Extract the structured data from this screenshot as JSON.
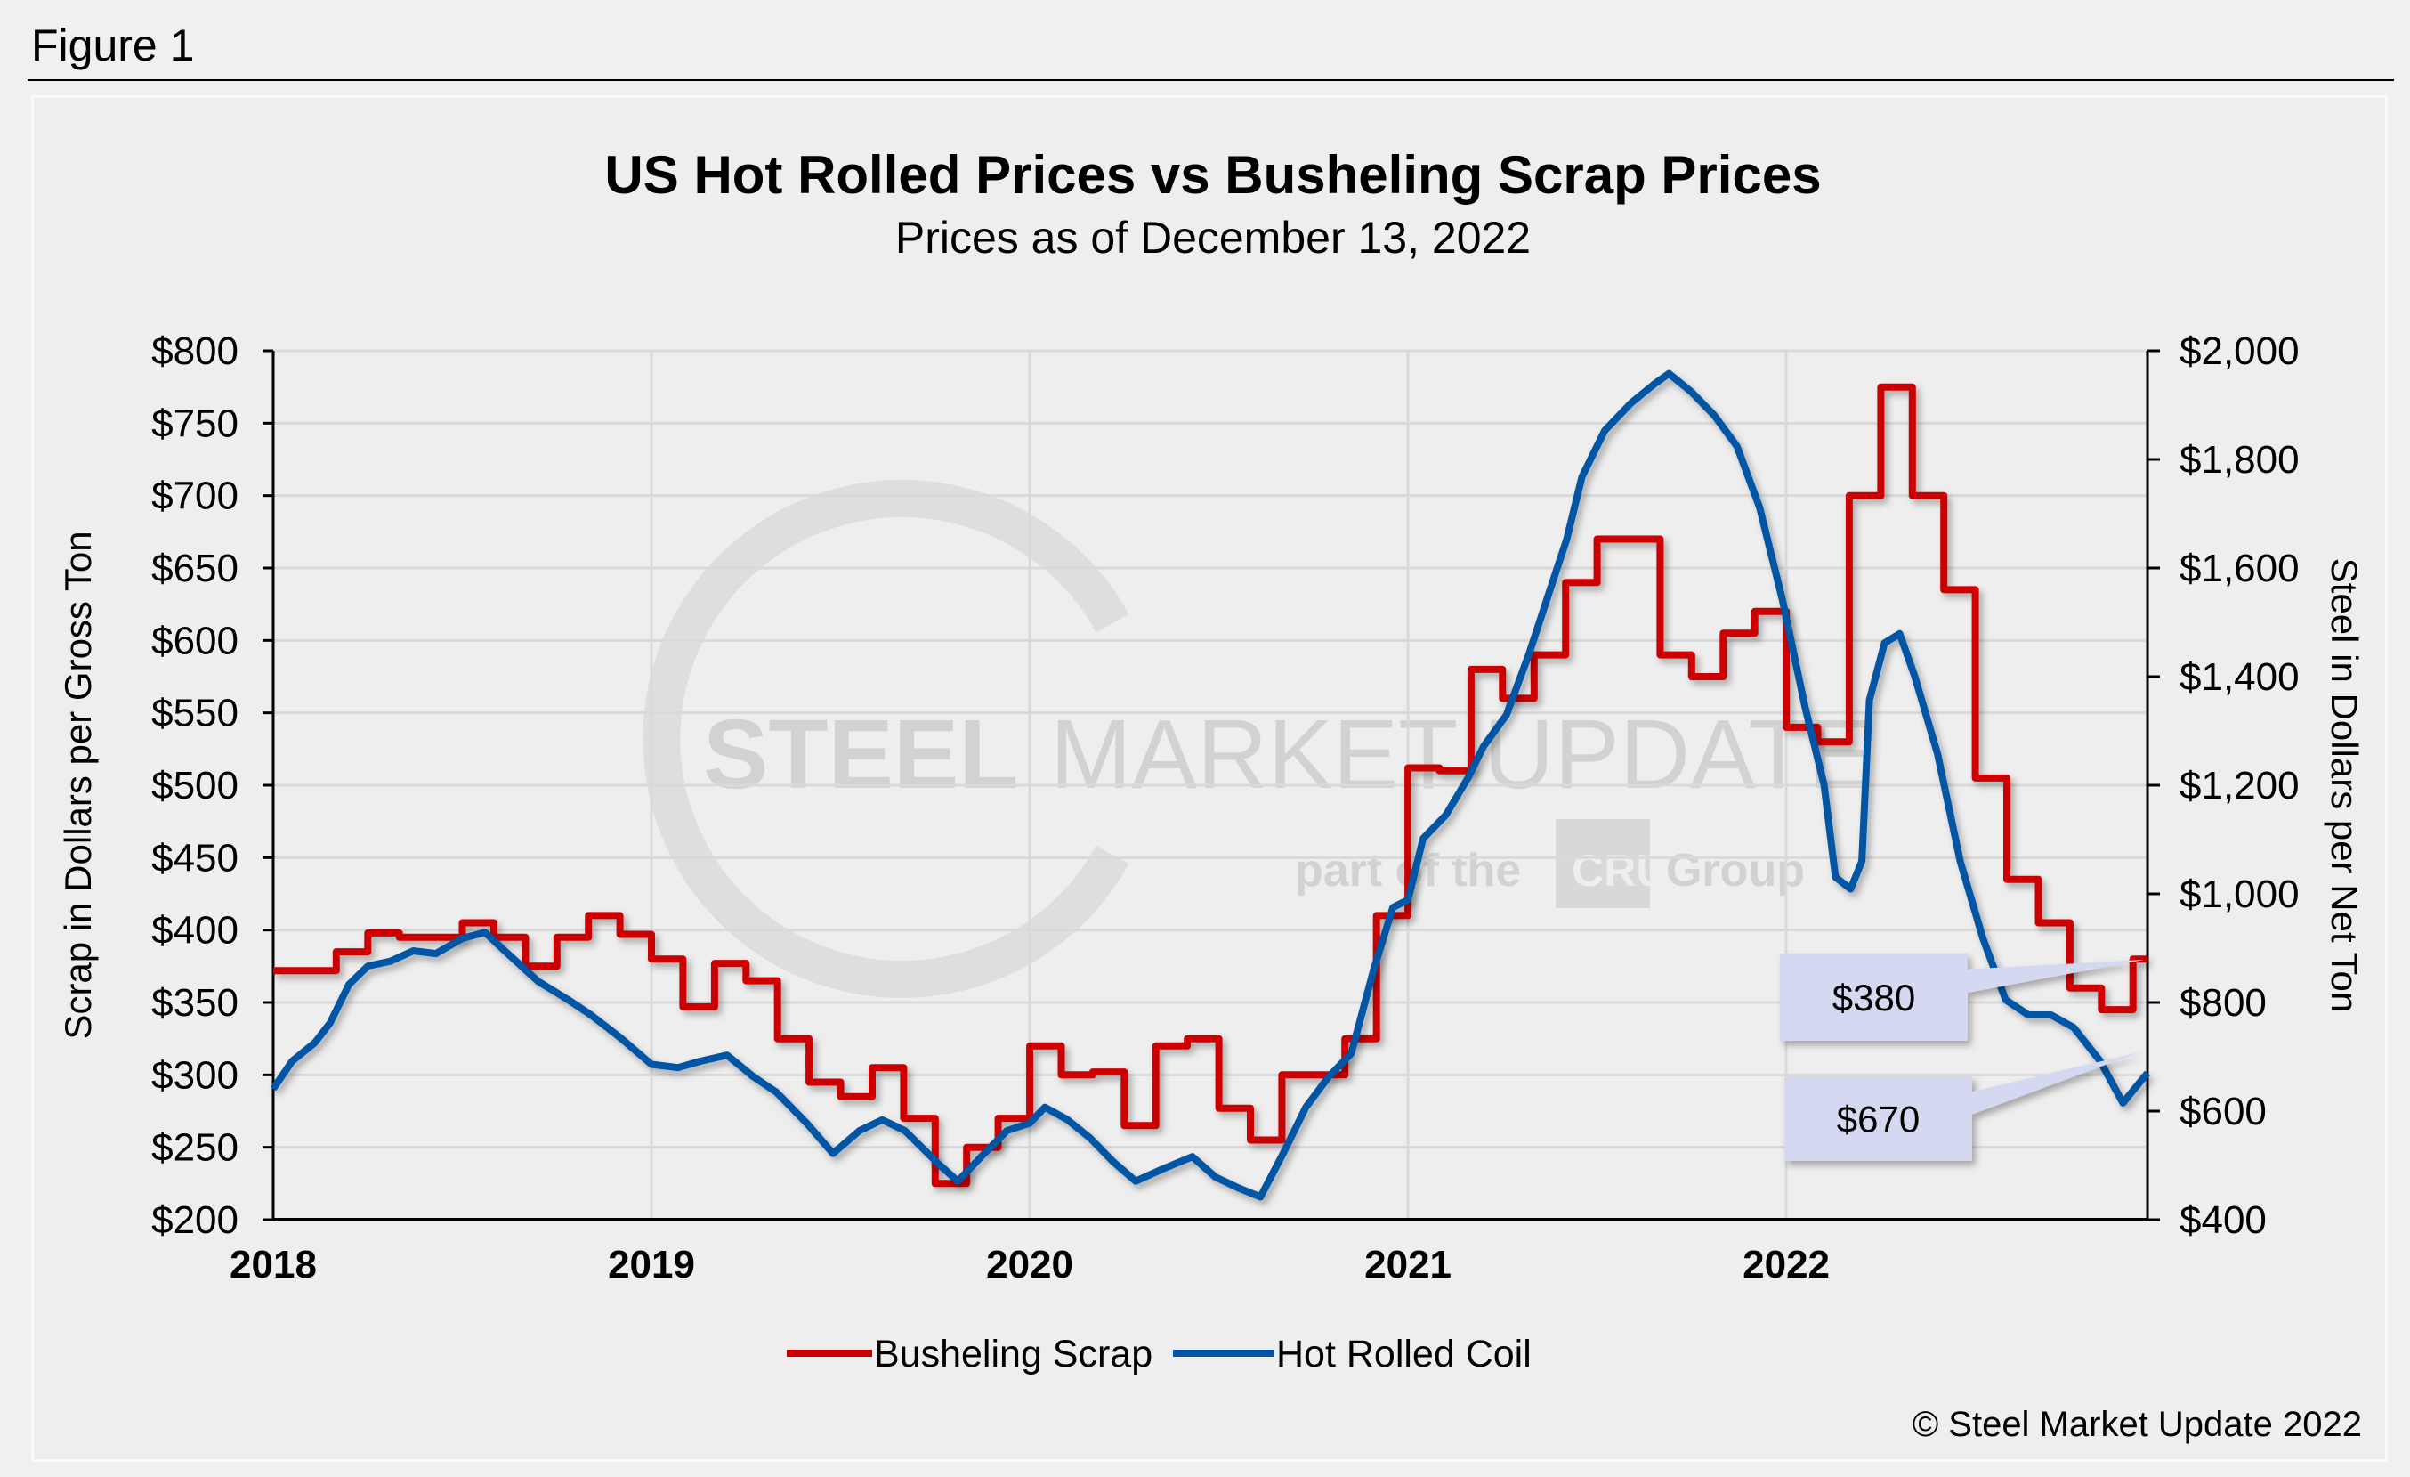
{
  "figure_label": "Figure 1",
  "copyright": "© Steel Market Update 2022",
  "watermark": {
    "line1_bold": "STEEL",
    "line1_rest": "MARKET UPDATE",
    "line2": "part of the",
    "logo": "CRU",
    "line2_end": "Group"
  },
  "colors": {
    "scrap": "#cc0000",
    "hrc": "#0055a5",
    "callout": "#d4d8f0",
    "background": "#eeeeee",
    "grid": "#d9d9d9"
  },
  "chart_data": {
    "type": "line",
    "title": "US Hot Rolled Prices vs Busheling Scrap Prices",
    "subtitle": "Prices as of December 13, 2022",
    "xlabel": "",
    "ylabel_left": "Scrap in Dollars per Gross Ton",
    "ylabel_right": "Steel in Dollars per Net Ton",
    "x_ticks": [
      "2018",
      "2019",
      "2020",
      "2021",
      "2022"
    ],
    "xlim": [
      2018,
      2022.955
    ],
    "ylim_left": [
      200,
      800
    ],
    "ylim_right": [
      400,
      2000
    ],
    "y_ticks_left": [
      "$200",
      "$250",
      "$300",
      "$350",
      "$400",
      "$450",
      "$500",
      "$550",
      "$600",
      "$650",
      "$700",
      "$750",
      "$800"
    ],
    "y_ticks_right": [
      "$400",
      "$600",
      "$800",
      "$1,000",
      "$1,200",
      "$1,400",
      "$1,600",
      "$1,800",
      "$2,000"
    ],
    "grid": true,
    "legend_position": "bottom",
    "series": [
      {
        "name": "Busheling Scrap",
        "axis": "left",
        "step": "monthly",
        "x": [
          "2018-01",
          "2018-02",
          "2018-03",
          "2018-04",
          "2018-05",
          "2018-06",
          "2018-07",
          "2018-08",
          "2018-09",
          "2018-10",
          "2018-11",
          "2018-12",
          "2019-01",
          "2019-02",
          "2019-03",
          "2019-04",
          "2019-05",
          "2019-06",
          "2019-07",
          "2019-08",
          "2019-09",
          "2019-10",
          "2019-11",
          "2019-12",
          "2020-01",
          "2020-02",
          "2020-03",
          "2020-04",
          "2020-05",
          "2020-06",
          "2020-07",
          "2020-08",
          "2020-09",
          "2020-10",
          "2020-11",
          "2020-12",
          "2021-01",
          "2021-02",
          "2021-03",
          "2021-04",
          "2021-05",
          "2021-06",
          "2021-07",
          "2021-08",
          "2021-09",
          "2021-10",
          "2021-11",
          "2021-12",
          "2022-01",
          "2022-02",
          "2022-03",
          "2022-04",
          "2022-05",
          "2022-06",
          "2022-07",
          "2022-08",
          "2022-09",
          "2022-10",
          "2022-11",
          "2022-12"
        ],
        "values": [
          372,
          372,
          385,
          398,
          395,
          395,
          405,
          395,
          375,
          395,
          410,
          397,
          380,
          347,
          377,
          365,
          325,
          295,
          285,
          305,
          270,
          225,
          250,
          270,
          320,
          300,
          302,
          265,
          320,
          325,
          277,
          255,
          300,
          300,
          325,
          410,
          512,
          510,
          580,
          560,
          590,
          640,
          670,
          670,
          590,
          575,
          605,
          620,
          540,
          530,
          700,
          775,
          700,
          635,
          505,
          435,
          405,
          360,
          345,
          380
        ]
      },
      {
        "name": "Hot Rolled Coil",
        "axis": "right",
        "x": [
          2018.0,
          2018.05,
          2018.11,
          2018.15,
          2018.2,
          2018.25,
          2018.31,
          2018.37,
          2018.43,
          2018.5,
          2018.56,
          2018.62,
          2018.7,
          2018.78,
          2018.84,
          2018.92,
          2019.0,
          2019.07,
          2019.13,
          2019.2,
          2019.27,
          2019.33,
          2019.41,
          2019.48,
          2019.55,
          2019.61,
          2019.67,
          2019.76,
          2019.81,
          2019.88,
          2019.94,
          2020.0,
          2020.04,
          2020.1,
          2020.16,
          2020.22,
          2020.28,
          2020.35,
          2020.43,
          2020.49,
          2020.55,
          2020.61,
          2020.67,
          2020.73,
          2020.79,
          2020.85,
          2020.91,
          2020.96,
          2021.0,
          2021.04,
          2021.1,
          2021.16,
          2021.2,
          2021.26,
          2021.32,
          2021.36,
          2021.42,
          2021.46,
          2021.52,
          2021.59,
          2021.65,
          2021.69,
          2021.75,
          2021.81,
          2021.87,
          2021.93,
          2021.99,
          2022.05,
          2022.1,
          2022.13,
          2022.17,
          2022.2,
          2022.22,
          2022.26,
          2022.3,
          2022.34,
          2022.4,
          2022.46,
          2022.52,
          2022.58,
          2022.64,
          2022.7,
          2022.76,
          2022.83,
          2022.89,
          2022.93,
          2022.955
        ],
        "values": [
          641,
          692,
          726,
          762,
          833,
          867,
          876,
          895,
          890,
          918,
          929,
          890,
          839,
          805,
          777,
          734,
          686,
          680,
          692,
          703,
          663,
          635,
          578,
          522,
          564,
          584,
          564,
          502,
          471,
          522,
          564,
          578,
          607,
          584,
          550,
          507,
          471,
          493,
          516,
          479,
          459,
          442,
          522,
          607,
          663,
          706,
          862,
          975,
          989,
          1102,
          1145,
          1215,
          1272,
          1329,
          1442,
          1527,
          1654,
          1768,
          1853,
          1904,
          1938,
          1958,
          1924,
          1881,
          1824,
          1711,
          1541,
          1343,
          1201,
          1031,
          1009,
          1060,
          1357,
          1462,
          1479,
          1400,
          1258,
          1060,
          918,
          805,
          777,
          777,
          754,
          692,
          615,
          649,
          670
        ]
      }
    ],
    "annotations": [
      {
        "text": "$380",
        "series": "Busheling Scrap"
      },
      {
        "text": "$670",
        "series": "Hot Rolled Coil"
      }
    ]
  }
}
